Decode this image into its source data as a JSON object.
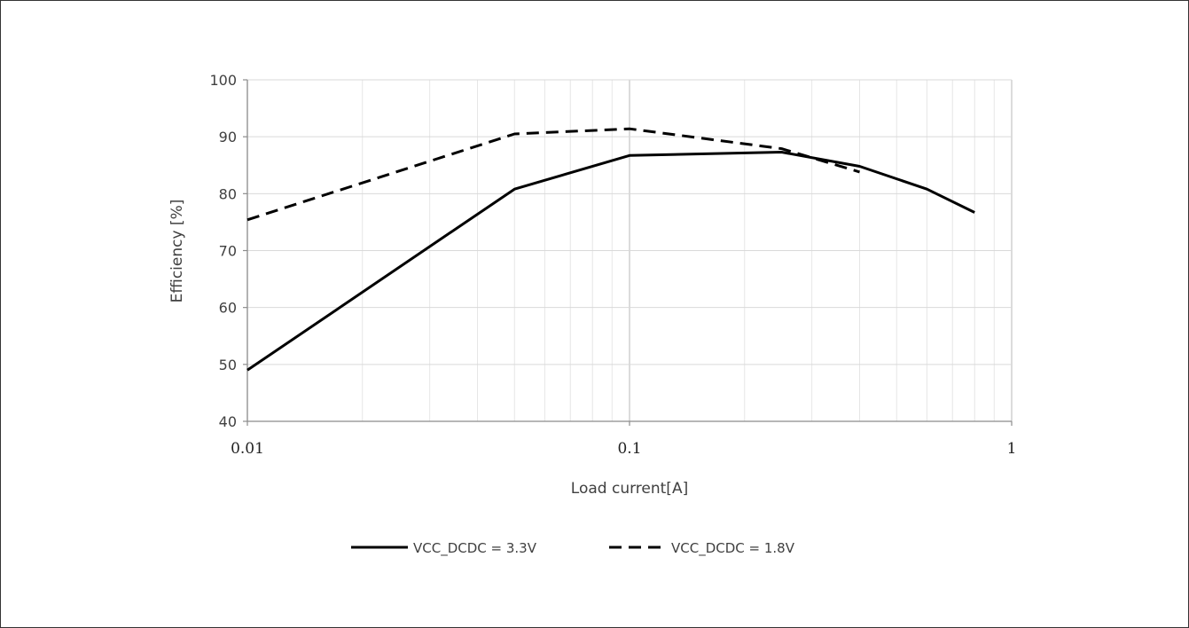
{
  "chart_data": {
    "type": "line",
    "title": "",
    "xlabel": "Load current[A]",
    "ylabel": "Efficiency [%]",
    "xscale": "log",
    "xlim": [
      0.01,
      1
    ],
    "ylim": [
      40,
      100
    ],
    "xticks": [
      "0.01",
      "0.1",
      "1"
    ],
    "yticks": [
      "40",
      "50",
      "60",
      "70",
      "80",
      "90",
      "100"
    ],
    "grid": true,
    "legend_position": "bottom",
    "series": [
      {
        "name": "VCC_DCDC = 3.3V",
        "style": "solid",
        "color": "#000000",
        "x": [
          0.01,
          0.05,
          0.1,
          0.25,
          0.4,
          0.6,
          0.8
        ],
        "y": [
          49,
          80.8,
          86.7,
          87.3,
          84.8,
          80.8,
          76.7
        ]
      },
      {
        "name": "VCC_DCDC = 1.8V",
        "style": "dashed",
        "color": "#000000",
        "x": [
          0.01,
          0.05,
          0.1,
          0.25,
          0.4
        ],
        "y": [
          75.4,
          90.5,
          91.4,
          87.9,
          83.8
        ]
      }
    ]
  }
}
